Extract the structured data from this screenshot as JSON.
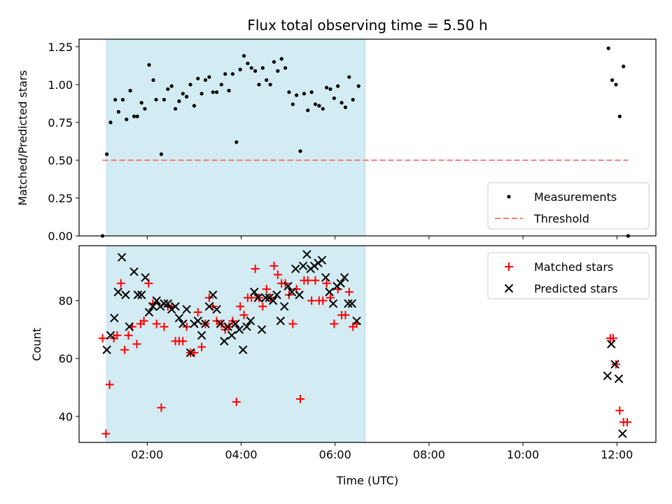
{
  "chart_data": [
    {
      "type": "scatter",
      "title": "Flux total observing time = 5.50 h",
      "xlabel": "",
      "ylabel": "Matched/Predicted stars",
      "ylim": [
        0,
        1.3
      ],
      "xlim_hours": [
        0.55,
        12.83
      ],
      "y_ticks": [
        "0.00",
        "0.25",
        "0.50",
        "0.75",
        "1.00",
        "1.25"
      ],
      "y_tick_values": [
        0,
        0.25,
        0.5,
        0.75,
        1.0,
        1.25
      ],
      "shaded_span_hours": [
        1.14,
        6.64
      ],
      "shaded_color": "#d3ebf2",
      "legend_position": "lower-right",
      "series": [
        {
          "name": "Measurements",
          "marker": "dot",
          "color": "#000000",
          "points": [
            [
              1.05,
              0.0
            ],
            [
              1.14,
              0.54
            ],
            [
              1.22,
              0.75
            ],
            [
              1.32,
              0.9
            ],
            [
              1.39,
              0.82
            ],
            [
              1.48,
              0.9
            ],
            [
              1.56,
              0.77
            ],
            [
              1.64,
              0.96
            ],
            [
              1.72,
              0.79
            ],
            [
              1.79,
              0.79
            ],
            [
              1.88,
              0.88
            ],
            [
              1.95,
              0.84
            ],
            [
              2.04,
              1.13
            ],
            [
              2.13,
              1.03
            ],
            [
              2.19,
              0.9
            ],
            [
              2.3,
              0.54
            ],
            [
              2.36,
              0.9
            ],
            [
              2.44,
              0.97
            ],
            [
              2.52,
              0.99
            ],
            [
              2.6,
              0.84
            ],
            [
              2.68,
              0.89
            ],
            [
              2.76,
              0.94
            ],
            [
              2.84,
              0.92
            ],
            [
              2.92,
              1.0
            ],
            [
              3.0,
              0.86
            ],
            [
              3.08,
              1.04
            ],
            [
              3.16,
              0.94
            ],
            [
              3.24,
              1.03
            ],
            [
              3.32,
              1.05
            ],
            [
              3.4,
              0.95
            ],
            [
              3.48,
              0.95
            ],
            [
              3.58,
              1.0
            ],
            [
              3.66,
              1.07
            ],
            [
              3.74,
              0.96
            ],
            [
              3.82,
              1.07
            ],
            [
              3.9,
              0.62
            ],
            [
              3.98,
              1.1
            ],
            [
              4.06,
              1.19
            ],
            [
              4.14,
              1.14
            ],
            [
              4.22,
              1.11
            ],
            [
              4.3,
              1.09
            ],
            [
              4.38,
              1.0
            ],
            [
              4.46,
              1.11
            ],
            [
              4.54,
              1.03
            ],
            [
              4.62,
              1.0
            ],
            [
              4.7,
              1.15
            ],
            [
              4.78,
              1.09
            ],
            [
              4.86,
              1.17
            ],
            [
              4.94,
              1.11
            ],
            [
              5.02,
              0.95
            ],
            [
              5.1,
              0.87
            ],
            [
              5.18,
              0.93
            ],
            [
              5.26,
              0.56
            ],
            [
              5.34,
              0.94
            ],
            [
              5.42,
              0.83
            ],
            [
              5.5,
              0.95
            ],
            [
              5.58,
              0.87
            ],
            [
              5.66,
              0.86
            ],
            [
              5.74,
              0.84
            ],
            [
              5.82,
              0.98
            ],
            [
              5.9,
              0.97
            ],
            [
              5.98,
              0.91
            ],
            [
              6.06,
              0.99
            ],
            [
              6.14,
              0.88
            ],
            [
              6.22,
              0.85
            ],
            [
              6.3,
              1.05
            ],
            [
              6.38,
              0.9
            ],
            [
              6.5,
              0.99
            ],
            [
              11.82,
              1.24
            ],
            [
              11.9,
              1.03
            ],
            [
              11.98,
              1.0
            ],
            [
              12.06,
              0.79
            ],
            [
              12.14,
              1.12
            ],
            [
              12.24,
              0.0
            ]
          ]
        },
        {
          "name": "Threshold",
          "marker": "dashed-line",
          "color": "#f08080",
          "points": [
            [
              1.05,
              0.5
            ],
            [
              12.24,
              0.5
            ]
          ]
        }
      ]
    },
    {
      "type": "scatter",
      "title": "",
      "xlabel": "Time (UTC)",
      "ylabel": "Count",
      "ylim": [
        31,
        99
      ],
      "xlim_hours": [
        0.55,
        12.83
      ],
      "x_ticks": [
        "02:00",
        "04:00",
        "06:00",
        "08:00",
        "10:00",
        "12:00"
      ],
      "x_tick_hours": [
        2,
        4,
        6,
        8,
        10,
        12
      ],
      "y_ticks": [
        "40",
        "60",
        "80"
      ],
      "y_tick_values": [
        40,
        60,
        80
      ],
      "shaded_span_hours": [
        1.14,
        6.64
      ],
      "shaded_color": "#d3ebf2",
      "legend_position": "top-right",
      "series": [
        {
          "name": "Matched stars",
          "marker": "plus",
          "color": "#ff0000",
          "points": [
            [
              1.05,
              67
            ],
            [
              1.12,
              34
            ],
            [
              1.2,
              51
            ],
            [
              1.29,
              67
            ],
            [
              1.36,
              68
            ],
            [
              1.44,
              86
            ],
            [
              1.52,
              63
            ],
            [
              1.6,
              68
            ],
            [
              1.68,
              71
            ],
            [
              1.78,
              65
            ],
            [
              1.86,
              72
            ],
            [
              1.93,
              73
            ],
            [
              2.03,
              86
            ],
            [
              2.12,
              79
            ],
            [
              2.2,
              72
            ],
            [
              2.3,
              43
            ],
            [
              2.36,
              71
            ],
            [
              2.44,
              78
            ],
            [
              2.52,
              78
            ],
            [
              2.6,
              66
            ],
            [
              2.68,
              66
            ],
            [
              2.76,
              66
            ],
            [
              2.84,
              71
            ],
            [
              2.92,
              62
            ],
            [
              3.0,
              62
            ],
            [
              3.08,
              76
            ],
            [
              3.16,
              64
            ],
            [
              3.24,
              72
            ],
            [
              3.32,
              81
            ],
            [
              3.4,
              78
            ],
            [
              3.48,
              73
            ],
            [
              3.58,
              72
            ],
            [
              3.66,
              70
            ],
            [
              3.74,
              71
            ],
            [
              3.82,
              73
            ],
            [
              3.9,
              45
            ],
            [
              3.98,
              78
            ],
            [
              4.06,
              75
            ],
            [
              4.14,
              81
            ],
            [
              4.22,
              81
            ],
            [
              4.3,
              91
            ],
            [
              4.38,
              81
            ],
            [
              4.46,
              78
            ],
            [
              4.54,
              84
            ],
            [
              4.62,
              81
            ],
            [
              4.7,
              92
            ],
            [
              4.78,
              89
            ],
            [
              4.86,
              86
            ],
            [
              4.94,
              86
            ],
            [
              5.02,
              82
            ],
            [
              5.1,
              72
            ],
            [
              5.18,
              84
            ],
            [
              5.26,
              46
            ],
            [
              5.34,
              87
            ],
            [
              5.42,
              87
            ],
            [
              5.5,
              80
            ],
            [
              5.58,
              87
            ],
            [
              5.66,
              80
            ],
            [
              5.74,
              80
            ],
            [
              5.82,
              86
            ],
            [
              5.9,
              81
            ],
            [
              5.98,
              72
            ],
            [
              6.06,
              84
            ],
            [
              6.14,
              75
            ],
            [
              6.22,
              75
            ],
            [
              6.3,
              83
            ],
            [
              6.38,
              71
            ],
            [
              6.46,
              72
            ],
            [
              11.86,
              67
            ],
            [
              11.92,
              67
            ],
            [
              11.98,
              58
            ],
            [
              12.06,
              42
            ],
            [
              12.14,
              38
            ],
            [
              12.22,
              38
            ]
          ]
        },
        {
          "name": "Predicted stars",
          "marker": "x",
          "color": "#000000",
          "points": [
            [
              1.14,
              63
            ],
            [
              1.22,
              68
            ],
            [
              1.3,
              74
            ],
            [
              1.38,
              83
            ],
            [
              1.46,
              95
            ],
            [
              1.54,
              82
            ],
            [
              1.62,
              71
            ],
            [
              1.72,
              90
            ],
            [
              1.8,
              82
            ],
            [
              1.88,
              82
            ],
            [
              1.96,
              88
            ],
            [
              2.04,
              76
            ],
            [
              2.12,
              78
            ],
            [
              2.2,
              80
            ],
            [
              2.28,
              78
            ],
            [
              2.36,
              79
            ],
            [
              2.44,
              79
            ],
            [
              2.52,
              77
            ],
            [
              2.6,
              78
            ],
            [
              2.68,
              74
            ],
            [
              2.76,
              72
            ],
            [
              2.84,
              77
            ],
            [
              2.92,
              62
            ],
            [
              3.0,
              72
            ],
            [
              3.08,
              73
            ],
            [
              3.16,
              68
            ],
            [
              3.24,
              72
            ],
            [
              3.32,
              78
            ],
            [
              3.4,
              82
            ],
            [
              3.48,
              77
            ],
            [
              3.56,
              72
            ],
            [
              3.64,
              66
            ],
            [
              3.72,
              71
            ],
            [
              3.8,
              68
            ],
            [
              3.88,
              72
            ],
            [
              3.96,
              70
            ],
            [
              4.04,
              63
            ],
            [
              4.12,
              71
            ],
            [
              4.2,
              73
            ],
            [
              4.28,
              83
            ],
            [
              4.36,
              81
            ],
            [
              4.44,
              70
            ],
            [
              4.52,
              81
            ],
            [
              4.6,
              81
            ],
            [
              4.68,
              80
            ],
            [
              4.76,
              82
            ],
            [
              4.84,
              73
            ],
            [
              4.92,
              78
            ],
            [
              5.0,
              85
            ],
            [
              5.08,
              83
            ],
            [
              5.16,
              91
            ],
            [
              5.24,
              82
            ],
            [
              5.32,
              92
            ],
            [
              5.4,
              96
            ],
            [
              5.48,
              91
            ],
            [
              5.56,
              92
            ],
            [
              5.64,
              93
            ],
            [
              5.72,
              94
            ],
            [
              5.8,
              88
            ],
            [
              5.88,
              83
            ],
            [
              5.96,
              79
            ],
            [
              6.04,
              85
            ],
            [
              6.12,
              86
            ],
            [
              6.2,
              88
            ],
            [
              6.28,
              79
            ],
            [
              6.36,
              79
            ],
            [
              6.46,
              73
            ],
            [
              11.8,
              54
            ],
            [
              11.88,
              65
            ],
            [
              11.96,
              58
            ],
            [
              12.04,
              53
            ],
            [
              12.12,
              34
            ]
          ]
        }
      ]
    }
  ]
}
